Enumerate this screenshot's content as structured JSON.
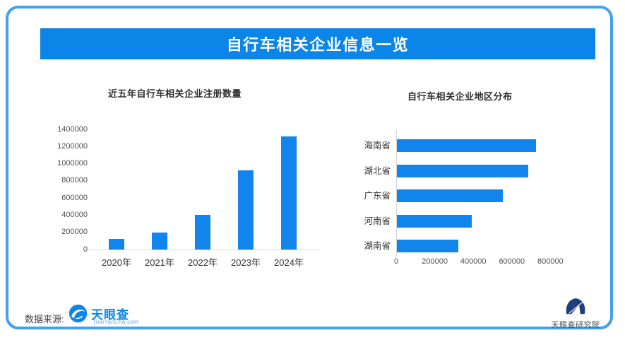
{
  "header": {
    "title": "自行车相关企业信息一览"
  },
  "footer": {
    "source_label": "数据来源:",
    "tianyancha_logo_text": "天眼查",
    "tianyancha_logo_subtext": "TianYanCha.com",
    "institute_logo_text": "天眼查研究院"
  },
  "colors": {
    "banner": "#0B86E8",
    "bar": "#1285EC",
    "frame": "#42A0EF",
    "logo_blue": "#0E85E9"
  },
  "chart_data": [
    {
      "type": "bar",
      "orientation": "vertical",
      "title": "近五年自行车相关企业注册数量",
      "categories": [
        "2020年",
        "2021年",
        "2022年",
        "2023年",
        "2024年"
      ],
      "values": [
        120000,
        195000,
        400000,
        920000,
        1320000
      ],
      "ylim": [
        0,
        1400000
      ],
      "yticks": [
        0,
        200000,
        400000,
        600000,
        800000,
        1000000,
        1200000,
        1400000
      ],
      "grid": false,
      "legend": null
    },
    {
      "type": "bar",
      "orientation": "horizontal",
      "title": "自行车相关企业地区分布",
      "categories": [
        "海南省",
        "湖北省",
        "广东省",
        "河南省",
        "湖南省"
      ],
      "values": [
        720000,
        680000,
        550000,
        390000,
        320000
      ],
      "xlim": [
        0,
        800000
      ],
      "xticks": [
        0,
        200000,
        400000,
        600000,
        800000
      ],
      "grid": false,
      "legend": null
    }
  ]
}
